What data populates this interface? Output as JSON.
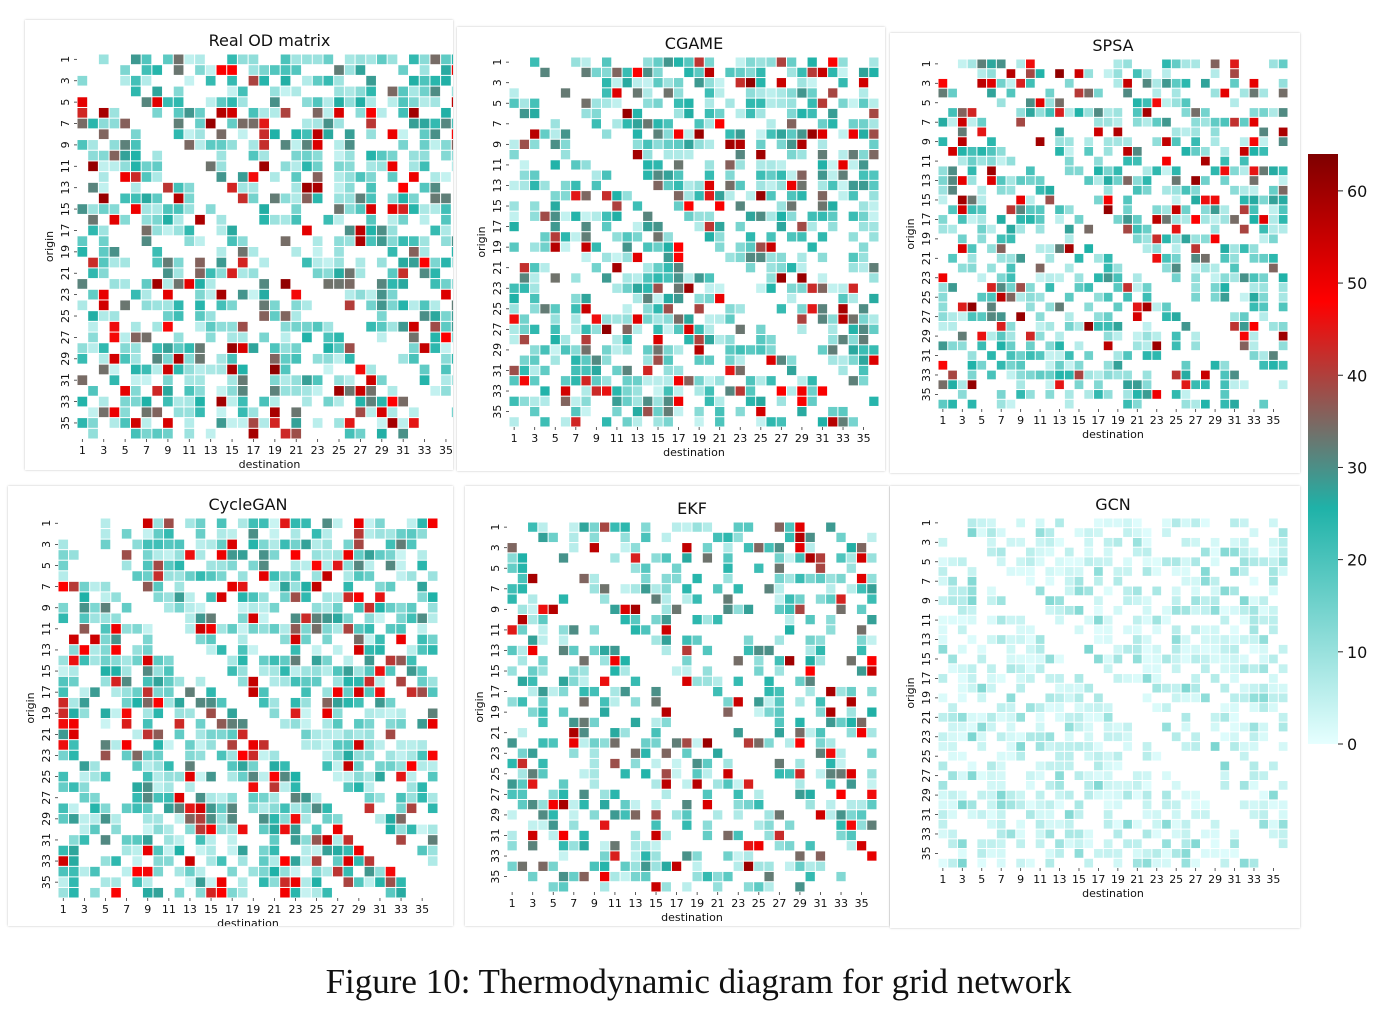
{
  "figure": {
    "caption": "Figure 10: Thermodynamic diagram for grid network"
  },
  "chart_data": [
    {
      "type": "heatmap",
      "title": "Real OD matrix",
      "xlabel": "destination",
      "ylabel": "origin",
      "x_ticks": [
        "1",
        "3",
        "5",
        "7",
        "9",
        "11",
        "13",
        "15",
        "17",
        "19",
        "21",
        "23",
        "25",
        "27",
        "29",
        "31",
        "33",
        "35"
      ],
      "y_ticks": [
        "1",
        "3",
        "5",
        "7",
        "9",
        "11",
        "13",
        "15",
        "17",
        "19",
        "21",
        "23",
        "25",
        "27",
        "29",
        "31",
        "33",
        "35"
      ],
      "size": 36,
      "vmin": 0,
      "vmax": 64,
      "density": 0.62,
      "max_scale": 1.0,
      "seed": 11
    },
    {
      "type": "heatmap",
      "title": "CGAME",
      "xlabel": "destination",
      "ylabel": "origin",
      "x_ticks": [
        "1",
        "3",
        "5",
        "7",
        "9",
        "11",
        "13",
        "15",
        "17",
        "19",
        "21",
        "23",
        "25",
        "27",
        "29",
        "31",
        "33",
        "35"
      ],
      "y_ticks": [
        "1",
        "3",
        "5",
        "7",
        "9",
        "11",
        "13",
        "15",
        "17",
        "19",
        "21",
        "23",
        "25",
        "27",
        "29",
        "31",
        "33",
        "35"
      ],
      "size": 36,
      "vmin": 0,
      "vmax": 64,
      "density": 0.62,
      "max_scale": 1.0,
      "seed": 23
    },
    {
      "type": "heatmap",
      "title": "SPSA",
      "xlabel": "destination",
      "ylabel": "origin",
      "x_ticks": [
        "1",
        "3",
        "5",
        "7",
        "9",
        "11",
        "13",
        "15",
        "17",
        "19",
        "21",
        "23",
        "25",
        "27",
        "29",
        "31",
        "33",
        "35"
      ],
      "y_ticks": [
        "1",
        "3",
        "5",
        "7",
        "9",
        "11",
        "13",
        "15",
        "17",
        "19",
        "21",
        "23",
        "25",
        "27",
        "29",
        "31",
        "33",
        "35"
      ],
      "size": 36,
      "vmin": 0,
      "vmax": 64,
      "density": 0.55,
      "max_scale": 1.0,
      "seed": 37
    },
    {
      "type": "heatmap",
      "title": "CycleGAN",
      "xlabel": "destination",
      "ylabel": "origin",
      "x_ticks": [
        "1",
        "3",
        "5",
        "7",
        "9",
        "11",
        "13",
        "15",
        "17",
        "19",
        "21",
        "23",
        "25",
        "27",
        "29",
        "31",
        "33",
        "35"
      ],
      "y_ticks": [
        "1",
        "3",
        "5",
        "7",
        "9",
        "11",
        "13",
        "15",
        "17",
        "19",
        "21",
        "23",
        "25",
        "27",
        "29",
        "31",
        "33",
        "35"
      ],
      "size": 36,
      "vmin": 0,
      "vmax": 64,
      "density": 0.68,
      "max_scale": 0.9,
      "seed": 41
    },
    {
      "type": "heatmap",
      "title": "EKF",
      "xlabel": "destination",
      "ylabel": "origin",
      "x_ticks": [
        "1",
        "3",
        "5",
        "7",
        "9",
        "11",
        "13",
        "15",
        "17",
        "19",
        "21",
        "23",
        "25",
        "27",
        "29",
        "31",
        "33",
        "35"
      ],
      "y_ticks": [
        "1",
        "3",
        "5",
        "7",
        "9",
        "11",
        "13",
        "15",
        "17",
        "19",
        "21",
        "23",
        "25",
        "27",
        "29",
        "31",
        "33",
        "35"
      ],
      "size": 36,
      "vmin": 0,
      "vmax": 64,
      "density": 0.45,
      "max_scale": 1.0,
      "seed": 53
    },
    {
      "type": "heatmap",
      "title": "GCN",
      "xlabel": "destination",
      "ylabel": "origin",
      "x_ticks": [
        "1",
        "3",
        "5",
        "7",
        "9",
        "11",
        "13",
        "15",
        "17",
        "19",
        "21",
        "23",
        "25",
        "27",
        "29",
        "31",
        "33",
        "35"
      ],
      "y_ticks": [
        "1",
        "3",
        "5",
        "7",
        "9",
        "11",
        "13",
        "15",
        "17",
        "19",
        "21",
        "23",
        "25",
        "27",
        "29",
        "31",
        "33",
        "35"
      ],
      "size": 36,
      "vmin": 0,
      "vmax": 64,
      "density": 0.6,
      "max_scale": 0.22,
      "seed": 67
    }
  ],
  "colorbar": {
    "ticks": [
      "0",
      "10",
      "20",
      "30",
      "40",
      "50",
      "60"
    ],
    "tick_values": [
      0,
      10,
      20,
      30,
      40,
      50,
      60
    ],
    "vmin": 0,
    "vmax": 64,
    "colors": [
      "#e6ffff",
      "#1fb2a8",
      "#ff0000",
      "#7f0000"
    ],
    "color_stops": [
      0,
      0.4,
      0.75,
      1
    ]
  }
}
